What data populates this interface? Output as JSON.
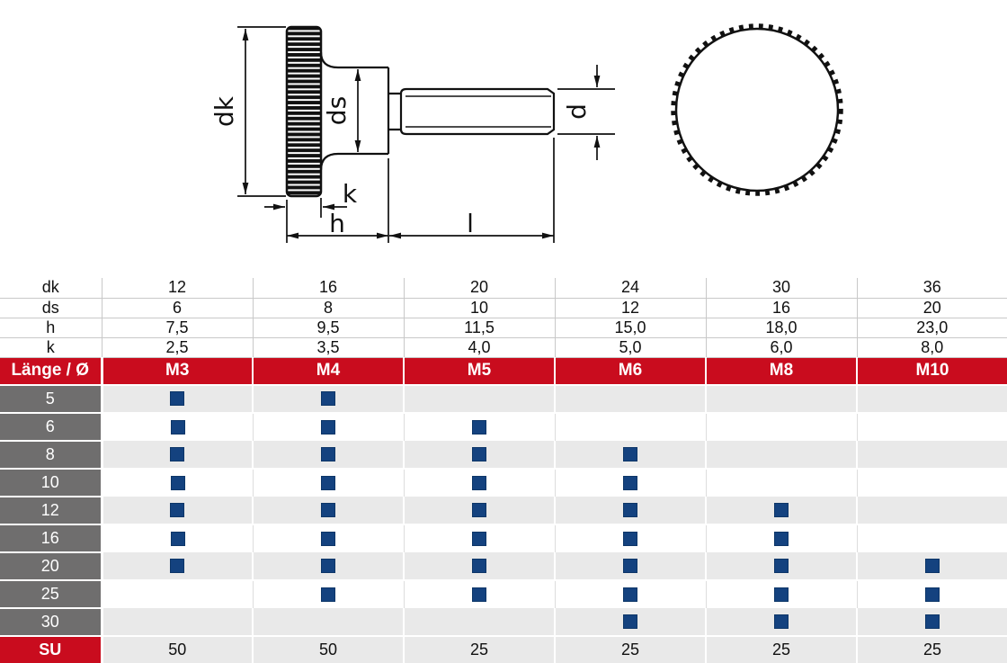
{
  "drawing": {
    "labels": {
      "dk": "dk",
      "ds": "ds",
      "d": "d",
      "k": "k",
      "h": "h",
      "l": "l"
    }
  },
  "table": {
    "spec_rows": [
      {
        "label": "dk",
        "values": [
          "12",
          "16",
          "20",
          "24",
          "30",
          "36"
        ]
      },
      {
        "label": "ds",
        "values": [
          "6",
          "8",
          "10",
          "12",
          "16",
          "20"
        ]
      },
      {
        "label": "h",
        "values": [
          "7,5",
          "9,5",
          "11,5",
          "15,0",
          "18,0",
          "23,0"
        ]
      },
      {
        "label": "k",
        "values": [
          "2,5",
          "3,5",
          "4,0",
          "5,0",
          "6,0",
          "8,0"
        ]
      }
    ],
    "size_header": {
      "label": "Länge / Ø",
      "values": [
        "M3",
        "M4",
        "M5",
        "M6",
        "M8",
        "M10"
      ]
    },
    "availability_rows": [
      {
        "label": "5",
        "available": [
          true,
          true,
          false,
          false,
          false,
          false
        ]
      },
      {
        "label": "6",
        "available": [
          true,
          true,
          true,
          false,
          false,
          false
        ]
      },
      {
        "label": "8",
        "available": [
          true,
          true,
          true,
          true,
          false,
          false
        ]
      },
      {
        "label": "10",
        "available": [
          true,
          true,
          true,
          true,
          false,
          false
        ]
      },
      {
        "label": "12",
        "available": [
          true,
          true,
          true,
          true,
          true,
          false
        ]
      },
      {
        "label": "16",
        "available": [
          true,
          true,
          true,
          true,
          true,
          false
        ]
      },
      {
        "label": "20",
        "available": [
          true,
          true,
          true,
          true,
          true,
          true
        ]
      },
      {
        "label": "25",
        "available": [
          false,
          true,
          true,
          true,
          true,
          true
        ]
      },
      {
        "label": "30",
        "available": [
          false,
          false,
          false,
          true,
          true,
          true
        ]
      }
    ],
    "su_row": {
      "label": "SU",
      "values": [
        "50",
        "50",
        "25",
        "25",
        "25",
        "25"
      ]
    }
  },
  "colors": {
    "accent_red": "#c90c1e",
    "label_gray": "#6f6e6e",
    "row_gray": "#e9e9e9",
    "availability_blue": "#14427f",
    "line_black": "#111111"
  }
}
